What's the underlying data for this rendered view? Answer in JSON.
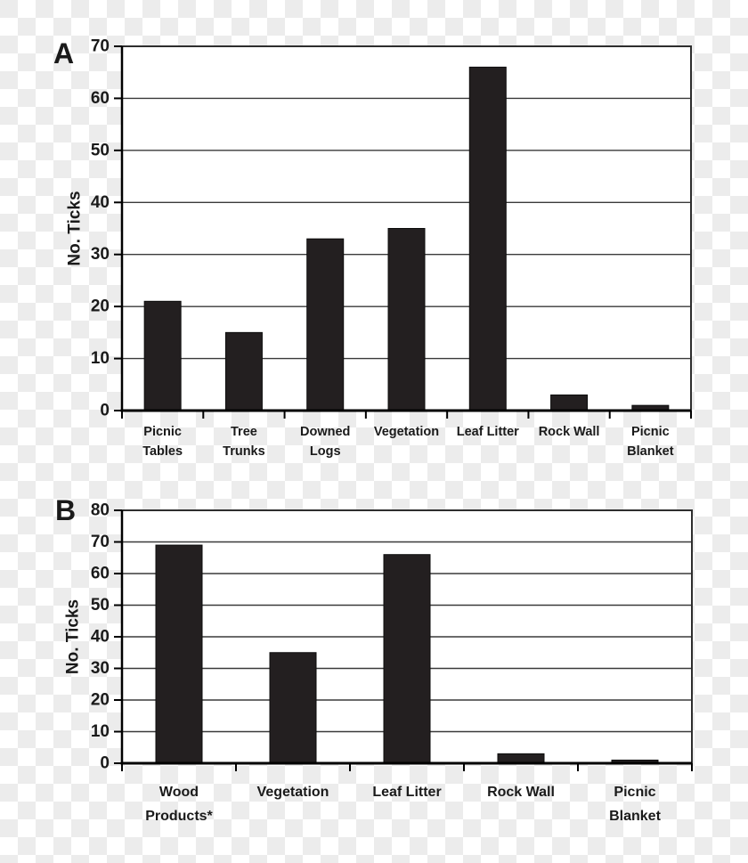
{
  "figure": {
    "description_visible_text_only": "",
    "panels": [
      "A",
      "B"
    ]
  },
  "colors": {
    "bar": "#231f20",
    "bar_stroke": "#0d0d0d",
    "grid": "#3a3a3a",
    "axis": "#000000",
    "border": "#2e2e2e",
    "text": "#1a1a1a",
    "plot_background": "#ffffff",
    "checker_light": "#ffffff",
    "checker_dark": "#ececec"
  },
  "chart_data": [
    {
      "type": "bar",
      "panel_label": "A",
      "title": "",
      "xlabel": "",
      "ylabel": "No. Ticks",
      "ylim": [
        0,
        70
      ],
      "ytick_step": 10,
      "yticks": [
        0,
        10,
        20,
        30,
        40,
        50,
        60,
        70
      ],
      "grid": true,
      "legend": false,
      "categories": [
        "Picnic Tables",
        "Tree Trunks",
        "Downed Logs",
        "Vegetation",
        "Leaf Litter",
        "Rock Wall",
        "Picnic Blanket"
      ],
      "category_lines": [
        [
          "Picnic",
          "Tables"
        ],
        [
          "Tree",
          "Trunks"
        ],
        [
          "Downed",
          "Logs"
        ],
        [
          "Vegetation"
        ],
        [
          "Leaf Litter"
        ],
        [
          "Rock Wall"
        ],
        [
          "Picnic",
          "Blanket"
        ]
      ],
      "values": [
        21,
        15,
        33,
        35,
        66,
        3,
        1
      ]
    },
    {
      "type": "bar",
      "panel_label": "B",
      "title": "",
      "xlabel": "",
      "ylabel": "No. Ticks",
      "ylim": [
        0,
        80
      ],
      "ytick_step": 10,
      "yticks": [
        0,
        10,
        20,
        30,
        40,
        50,
        60,
        70,
        80
      ],
      "grid": true,
      "legend": false,
      "categories": [
        "Wood Products*",
        "Vegetation",
        "Leaf Litter",
        "Rock Wall",
        "Picnic Blanket"
      ],
      "category_lines": [
        [
          "Wood",
          "Products*"
        ],
        [
          "Vegetation"
        ],
        [
          "Leaf Litter"
        ],
        [
          "Rock Wall"
        ],
        [
          "Picnic",
          "Blanket"
        ]
      ],
      "values": [
        69,
        35,
        66,
        3,
        1
      ]
    }
  ]
}
